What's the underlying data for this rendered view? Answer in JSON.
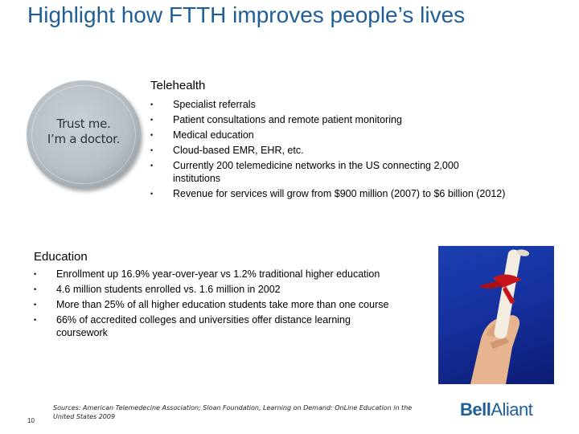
{
  "title": "Highlight how FTTH improves people’s lives",
  "badge": {
    "line1": "Trust me.",
    "line2": "I’m a doctor."
  },
  "telehealth": {
    "heading": "Telehealth",
    "items": [
      "Specialist referrals",
      "Patient consultations and remote patient monitoring",
      "Medical education",
      "Cloud-based EMR, EHR, etc.",
      "Currently 200 telemedicine networks in the US connecting 2,000 institutions",
      "Revenue for services will grow from $900 million (2007) to $6 billion (2012)"
    ]
  },
  "education": {
    "heading": "Education",
    "items": [
      "Enrollment up 16.9% year-over-year vs 1.2% traditional higher education",
      "4.6 million students enrolled vs. 1.6 million in 2002",
      "More than 25% of all higher education students take more than one course",
      "66% of accredited colleges and universities offer distance learning coursework"
    ]
  },
  "footer": {
    "sources": "Sources: American Telemedecine Association; Sloan Foundation, Learning on Demand: OnLine Education in the United States 2009",
    "page_number": "10"
  },
  "logo": {
    "part1": "Bell",
    "part2": "Aliant"
  },
  "colors": {
    "title": "#1f5f96",
    "logo": "#1f5f96",
    "photo_background": "#1a3aa0",
    "ribbon": "#c4161c"
  }
}
